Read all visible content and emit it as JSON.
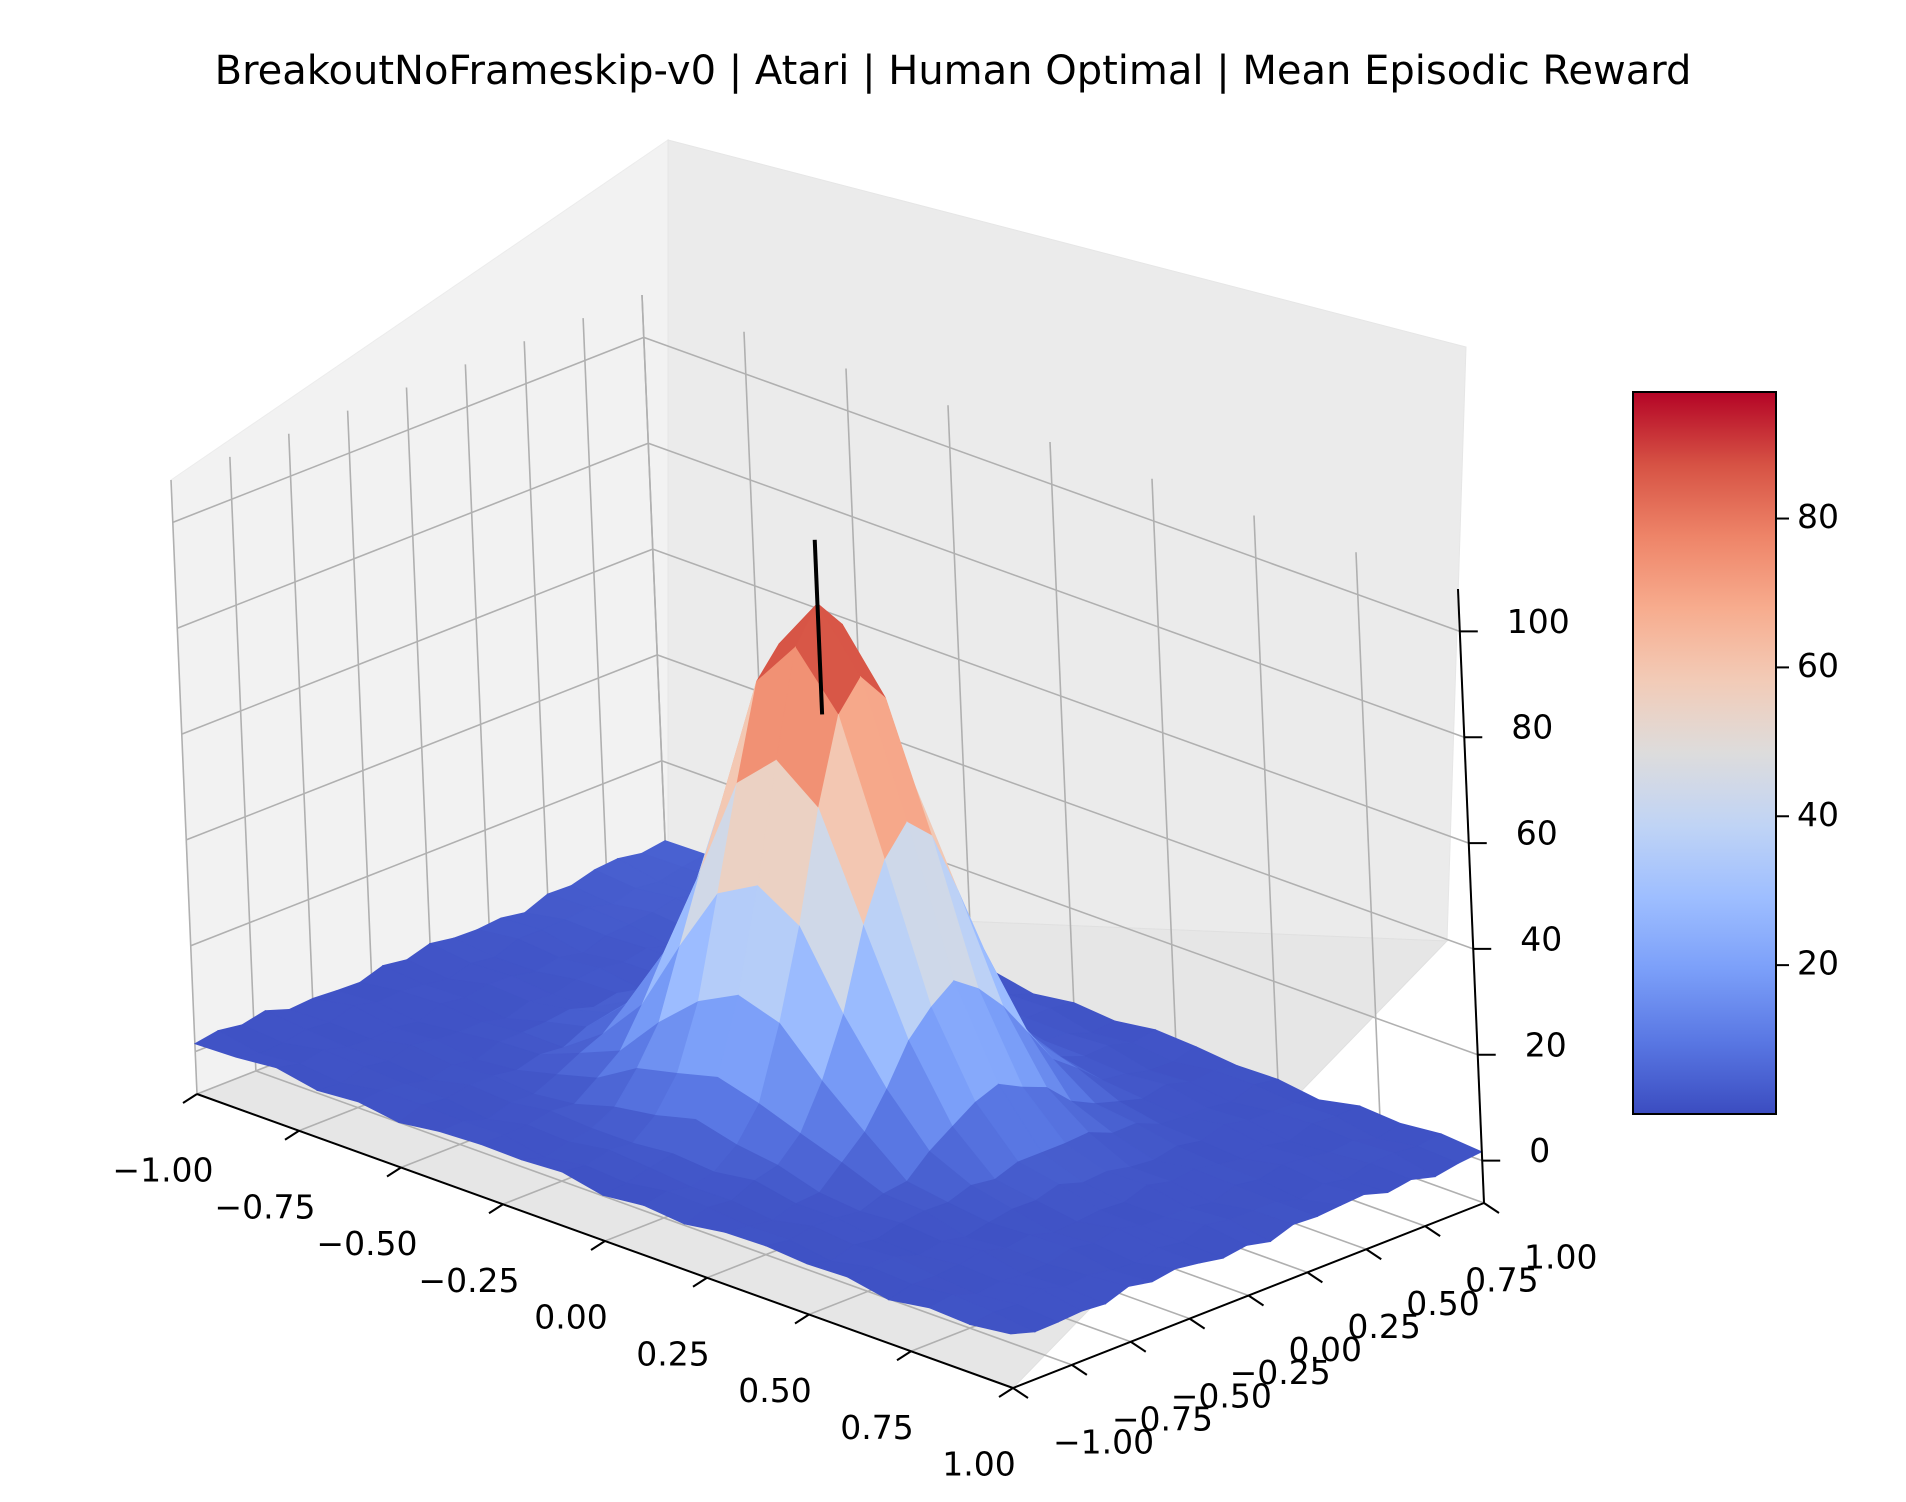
{
  "chart_data": {
    "type": "surface",
    "title": "BreakoutNoFrameskip-v0 | Atari | Human Optimal | Mean Episodic Reward",
    "colormap": "coolwarm",
    "colormap_colors": [
      "#3b4cc0",
      "#5977e3",
      "#7b9ff9",
      "#9ebeff",
      "#c0d4f5",
      "#dddcdc",
      "#f2cbb7",
      "#f7ac8e",
      "#ee8468",
      "#d65244",
      "#b40426"
    ],
    "x_ticks": [
      "−1.00",
      "−0.75",
      "−0.50",
      "−0.25",
      "0.00",
      "0.25",
      "0.50",
      "0.75",
      "1.00"
    ],
    "y_ticks": [
      "−1.00",
      "−0.75",
      "−0.50",
      "−0.25",
      "0.00",
      "0.25",
      "0.50",
      "0.75",
      "1.00"
    ],
    "z_ticks": [
      "0",
      "20",
      "40",
      "60",
      "80",
      "100"
    ],
    "xlim": [
      -1.0,
      1.0
    ],
    "ylim": [
      -1.0,
      1.0
    ],
    "zlim": [
      -8,
      108
    ],
    "surface": {
      "grid": [
        -1.0,
        -0.9,
        -0.8,
        -0.7,
        -0.6,
        -0.5,
        -0.4,
        -0.3,
        -0.2,
        -0.1,
        0.0,
        0.1,
        0.2,
        0.3,
        0.4,
        0.5,
        0.6,
        0.7,
        0.8,
        0.9,
        1.0
      ],
      "baseline": 1.5,
      "floor_extra_center": [
        -1.0,
        1.0
      ],
      "floor_extra_height": 3.0,
      "peak_height": 94,
      "peak_center": [
        0.0,
        0.0
      ],
      "peak_spread": [
        0.2,
        0.25
      ],
      "min": 0,
      "max": 97
    },
    "marker": {
      "x": 0.0,
      "y": 0.0,
      "z_from": 74,
      "z_to": 97
    },
    "colorbar": {
      "ticks": [
        "20",
        "40",
        "60",
        "80"
      ],
      "tick_values": [
        20,
        40,
        60,
        80
      ],
      "range": [
        0,
        97
      ]
    },
    "grid": true
  }
}
